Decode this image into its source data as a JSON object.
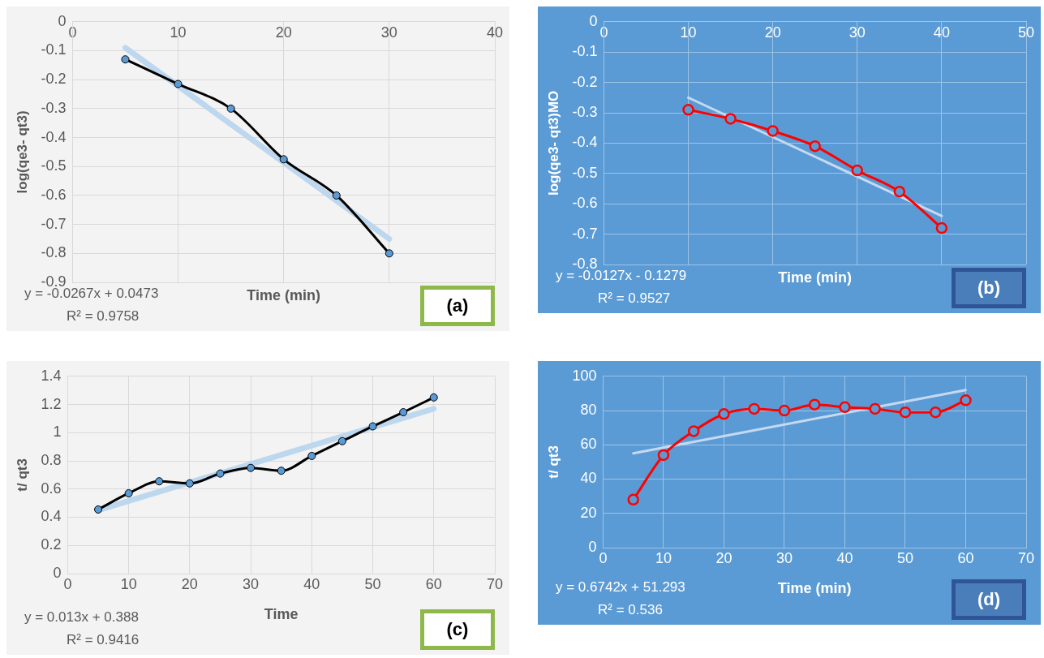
{
  "chart_data": [
    {
      "type": "line",
      "xlabel": "Time (min)",
      "ylabel": "log(qe3- qt3)",
      "xlim": [
        0,
        40
      ],
      "xticks": [
        0,
        10,
        20,
        30,
        40
      ],
      "ylim": [
        -0.9,
        0
      ],
      "yticks": [
        -0.9,
        -0.8,
        -0.7,
        -0.6,
        -0.5,
        -0.4,
        -0.3,
        -0.2,
        -0.1,
        0
      ],
      "grid": true,
      "legend": false,
      "marker": "circle",
      "line_style": "solid",
      "x": [
        5,
        10,
        15,
        20,
        25,
        30
      ],
      "series": [
        {
          "color": "#000000",
          "values": [
            -0.13,
            -0.215,
            -0.3,
            -0.475,
            -0.6,
            -0.8
          ]
        },
        {
          "type": "line",
          "marker": "none",
          "color": "#bdd7ee",
          "x": [
            5,
            30
          ],
          "values": [
            -0.09,
            -0.75
          ]
        }
      ],
      "annotations": [
        "y = -0.0267x + 0.0473",
        "R² = 0.9758",
        "(a)"
      ]
    },
    {
      "type": "line",
      "xlabel": "Time (min)",
      "ylabel": "log(qe3- qt3)MO",
      "xlim": [
        0,
        50
      ],
      "xticks": [
        0,
        10,
        20,
        30,
        40,
        50
      ],
      "ylim": [
        -0.8,
        0
      ],
      "yticks": [
        -0.8,
        -0.7,
        -0.6,
        -0.5,
        -0.4,
        -0.3,
        -0.2,
        -0.1,
        0
      ],
      "grid": true,
      "legend": false,
      "marker": "circle",
      "line_style": "solid",
      "x": [
        10,
        15,
        20,
        25,
        30,
        35,
        40
      ],
      "series": [
        {
          "color": "#ff0000",
          "values": [
            -0.29,
            -0.32,
            -0.36,
            -0.41,
            -0.49,
            -0.56,
            -0.68
          ]
        },
        {
          "type": "line",
          "marker": "none",
          "color": "#c5d9f1",
          "x": [
            10,
            40
          ],
          "values": [
            -0.25,
            -0.64
          ]
        }
      ],
      "annotations": [
        "y = -0.0127x - 0.1279",
        "R² = 0.9527",
        "(b)"
      ]
    },
    {
      "type": "line",
      "xlabel": "Time",
      "ylabel": "t/ qt3",
      "xlim": [
        0,
        70
      ],
      "xticks": [
        0,
        10,
        20,
        30,
        40,
        50,
        60,
        70
      ],
      "ylim": [
        0,
        1.4
      ],
      "yticks": [
        0,
        0.2,
        0.4,
        0.6,
        0.8,
        1,
        1.2,
        1.4
      ],
      "grid": true,
      "legend": false,
      "marker": "circle",
      "line_style": "solid",
      "x": [
        5,
        10,
        15,
        20,
        25,
        30,
        35,
        40,
        45,
        50,
        55,
        60
      ],
      "series": [
        {
          "color": "#000000",
          "values": [
            0.455,
            0.57,
            0.655,
            0.64,
            0.71,
            0.75,
            0.73,
            0.835,
            0.94,
            1.045,
            1.145,
            1.25
          ]
        },
        {
          "type": "line",
          "marker": "none",
          "color": "#bdd7ee",
          "x": [
            5,
            60
          ],
          "values": [
            0.45,
            1.17
          ]
        }
      ],
      "annotations": [
        "y = 0.013x + 0.388",
        "R² = 0.9416",
        "(c)"
      ]
    },
    {
      "type": "line",
      "xlabel": "Time (min)",
      "ylabel": "t/ qt3",
      "xlim": [
        0,
        70
      ],
      "xticks": [
        0,
        10,
        20,
        30,
        40,
        50,
        60,
        70
      ],
      "ylim": [
        0,
        100
      ],
      "yticks": [
        0,
        20,
        40,
        60,
        80,
        100
      ],
      "grid": true,
      "legend": false,
      "marker": "circle",
      "line_style": "solid",
      "x": [
        5,
        10,
        15,
        20,
        25,
        30,
        35,
        40,
        45,
        50,
        55,
        60
      ],
      "series": [
        {
          "color": "#ff0000",
          "values": [
            28,
            54,
            68,
            78,
            81,
            80,
            83.5,
            82,
            81,
            79,
            79,
            86
          ]
        },
        {
          "type": "line",
          "marker": "none",
          "color": "#c5d9f1",
          "x": [
            5,
            60
          ],
          "values": [
            55,
            92
          ]
        }
      ],
      "annotations": [
        "y = 0.6742x + 51.293",
        "R² = 0.536",
        "(d)"
      ]
    }
  ]
}
